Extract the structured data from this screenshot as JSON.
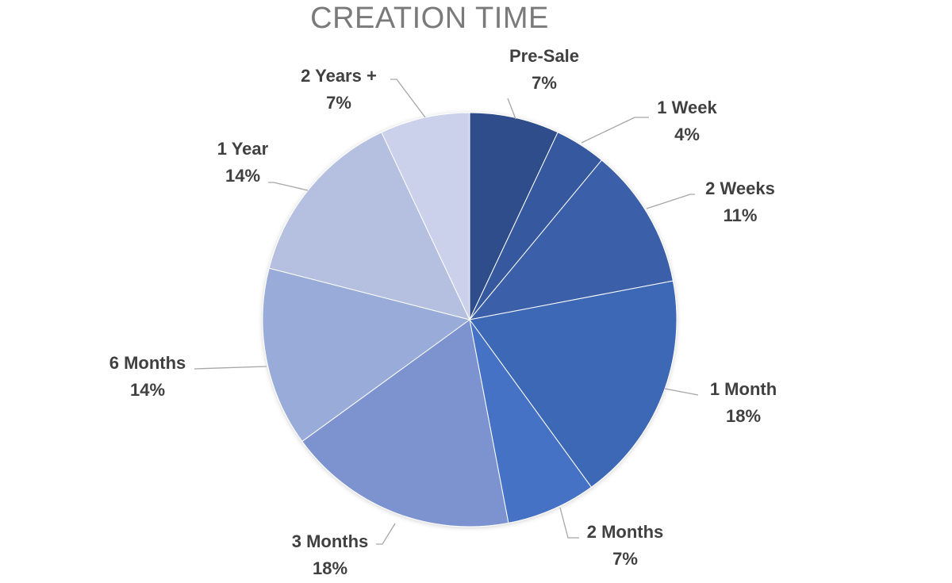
{
  "chart_data": {
    "type": "pie",
    "title": "CREATION TIME",
    "categories": [
      "Pre-Sale",
      "1 Week",
      "2 Weeks",
      "1 Month",
      "2 Months",
      "3 Months",
      "6 Months",
      "1 Year",
      "2 Years +"
    ],
    "values": [
      7,
      4,
      11,
      18,
      7,
      18,
      14,
      14,
      7
    ],
    "data_labels": [
      "7%",
      "4%",
      "11%",
      "18%",
      "7%",
      "18%",
      "14%",
      "14%",
      "7%"
    ],
    "colors": [
      "#2e4d8a",
      "#34599e",
      "#3a5fa8",
      "#3d67b5",
      "#4472c4",
      "#7b93d0",
      "#99acd9",
      "#b5c0e1",
      "#cbd1ea"
    ],
    "legend": "none"
  }
}
